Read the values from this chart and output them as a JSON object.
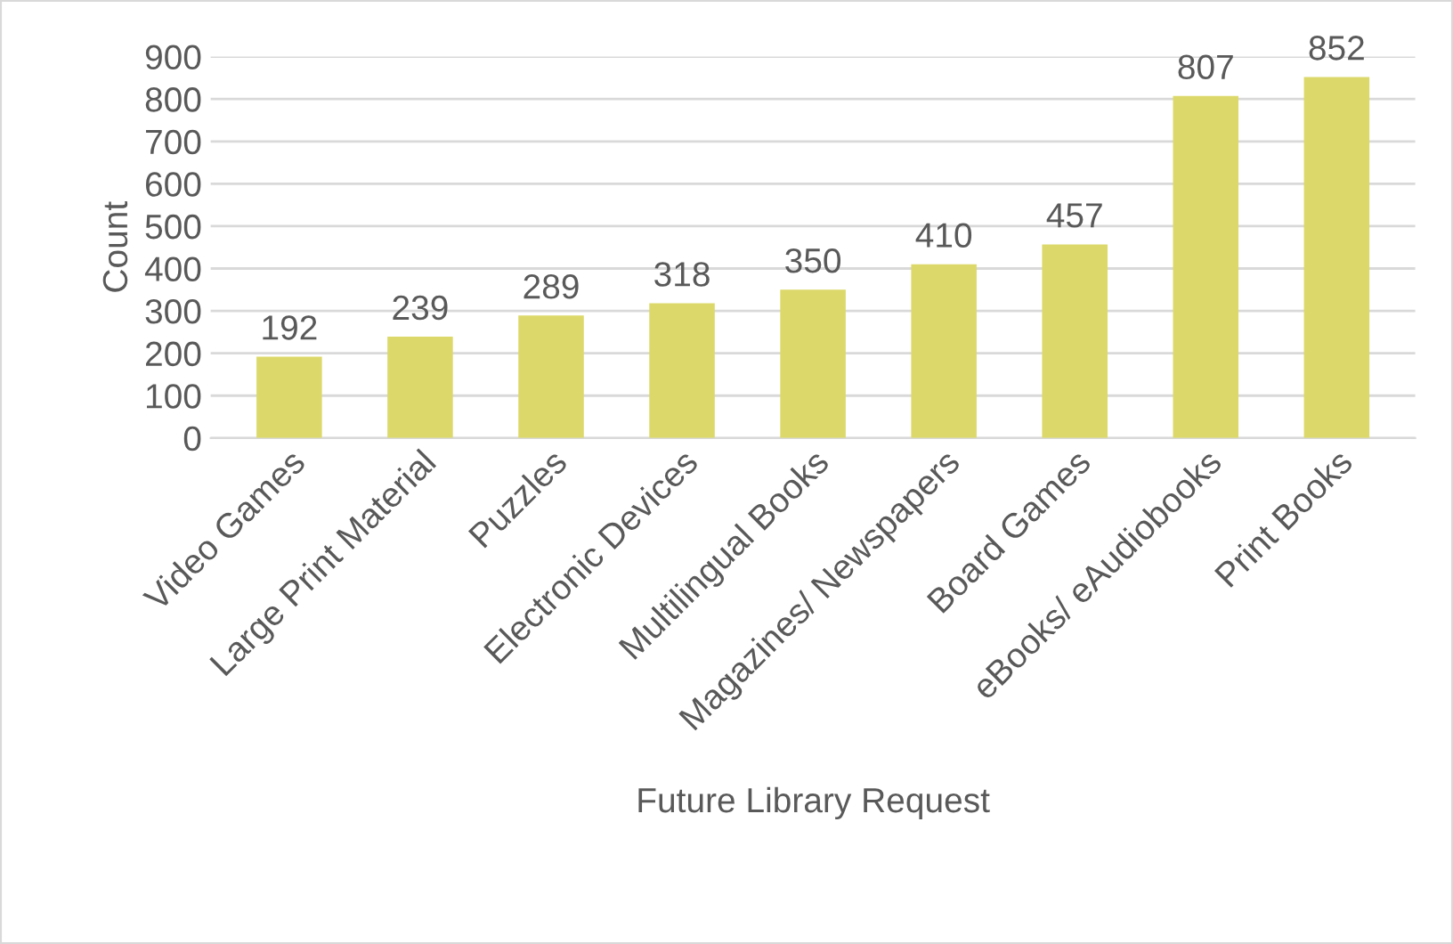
{
  "chart_data": {
    "type": "bar",
    "xlabel": "Future Library Request",
    "ylabel": "Count",
    "categories": [
      "Video Games",
      "Large Print Material",
      "Puzzles",
      "Electronic Devices",
      "Multilingual Books",
      "Magazines/ Newspapers",
      "Board Games",
      "eBooks/ eAudiobooks",
      "Print Books"
    ],
    "values": [
      192,
      239,
      289,
      318,
      350,
      410,
      457,
      807,
      852
    ],
    "color": "#dcd96a",
    "ylim": [
      0,
      900
    ],
    "yticks": [
      0,
      100,
      200,
      300,
      400,
      500,
      600,
      700,
      800,
      900
    ],
    "grid": "y",
    "data_labels": true
  }
}
